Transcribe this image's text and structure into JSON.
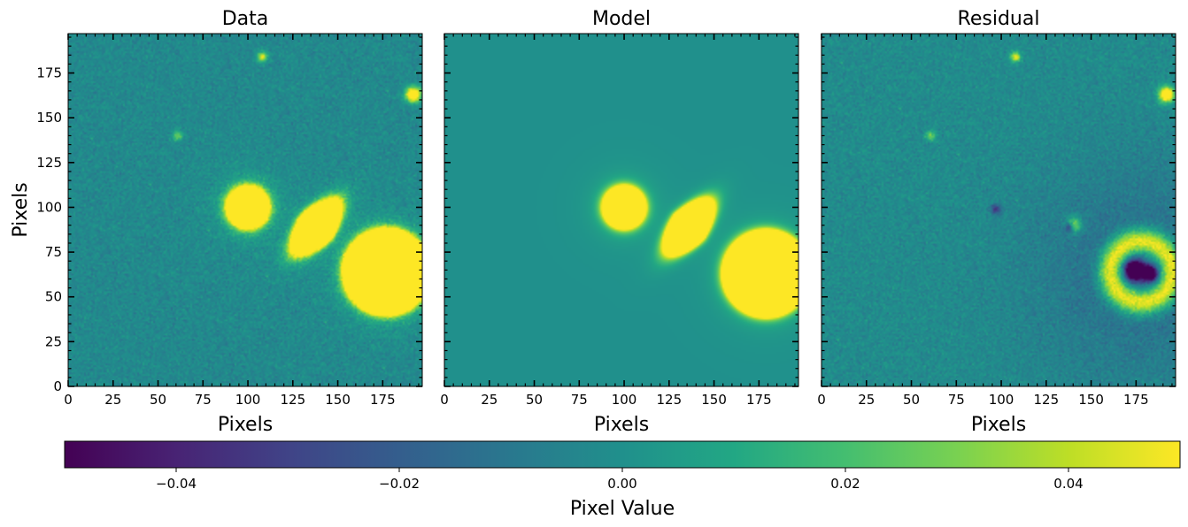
{
  "chart_data": {
    "type": "heatmap",
    "panels": [
      {
        "title": "Data",
        "xlabel": "Pixels",
        "ylabel": "Pixels",
        "xlim": [
          0,
          197
        ],
        "ylim": [
          0,
          197
        ],
        "xticks": [
          0,
          25,
          50,
          75,
          100,
          125,
          150,
          175
        ],
        "yticks": [
          0,
          25,
          50,
          75,
          100,
          125,
          150,
          175
        ],
        "background_value": -0.003,
        "noise": 0.0035,
        "sources": [
          {
            "shape": "circle",
            "x": 100,
            "y": 100,
            "r": 11,
            "peak": 0.25
          },
          {
            "shape": "lens",
            "x": 138,
            "y": 89,
            "a": 18,
            "b": 10,
            "angle": 50,
            "peak": 0.25
          },
          {
            "shape": "circle",
            "x": 177,
            "y": 64,
            "r": 23,
            "peak": 0.3
          },
          {
            "shape": "dot",
            "x": 108,
            "y": 184,
            "r": 2,
            "peak": 0.05
          },
          {
            "shape": "dot",
            "x": 61,
            "y": 140,
            "r": 2,
            "peak": 0.03
          },
          {
            "shape": "dot",
            "x": 192,
            "y": 163,
            "r": 3,
            "peak": 0.08
          }
        ]
      },
      {
        "title": "Model",
        "xlabel": "Pixels",
        "ylabel": "",
        "xlim": [
          0,
          197
        ],
        "ylim": [
          0,
          197
        ],
        "xticks": [
          0,
          25,
          50,
          75,
          100,
          125,
          150,
          175
        ],
        "yticks": [],
        "background_value": 0.0,
        "noise": 0.0,
        "sources": [
          {
            "shape": "circle",
            "x": 100,
            "y": 100,
            "r": 11,
            "peak": 0.25
          },
          {
            "shape": "lens",
            "x": 136,
            "y": 89,
            "a": 18,
            "b": 10,
            "angle": 50,
            "peak": 0.25
          },
          {
            "shape": "circle",
            "x": 179,
            "y": 63,
            "r": 23,
            "peak": 0.3
          }
        ]
      },
      {
        "title": "Residual",
        "xlabel": "Pixels",
        "ylabel": "",
        "xlim": [
          0,
          197
        ],
        "ylim": [
          0,
          197
        ],
        "xticks": [
          0,
          25,
          50,
          75,
          100,
          125,
          150,
          175
        ],
        "yticks": [],
        "background_value": -0.002,
        "noise": 0.0035,
        "sources": [
          {
            "shape": "ring",
            "x": 178,
            "y": 64,
            "r": 17,
            "width": 5,
            "peak": 0.06
          },
          {
            "shape": "dot",
            "x": 174,
            "y": 65,
            "r": 4,
            "peak": -0.08
          },
          {
            "shape": "dot",
            "x": 183,
            "y": 63,
            "r": 3,
            "peak": -0.07
          },
          {
            "shape": "dot",
            "x": 140,
            "y": 90,
            "r": 3,
            "peak": 0.05
          },
          {
            "shape": "dot",
            "x": 138,
            "y": 89,
            "r": 2,
            "peak": -0.05
          },
          {
            "shape": "dot",
            "x": 108,
            "y": 184,
            "r": 2,
            "peak": 0.05
          },
          {
            "shape": "dot",
            "x": 61,
            "y": 140,
            "r": 2,
            "peak": 0.03
          },
          {
            "shape": "dot",
            "x": 192,
            "y": 163,
            "r": 3,
            "peak": 0.08
          },
          {
            "shape": "dot",
            "x": 97,
            "y": 99,
            "r": 2,
            "peak": -0.03
          },
          {
            "shape": "dark_halo",
            "x": 178,
            "y": 64,
            "r": 42,
            "peak": -0.012
          }
        ]
      }
    ],
    "colorbar": {
      "label": "Pixel Value",
      "colormap": "viridis",
      "vmin": -0.05,
      "vmax": 0.05,
      "ticks": [
        -0.04,
        -0.02,
        0.0,
        0.02,
        0.04
      ],
      "tick_labels": [
        "−0.04",
        "−0.02",
        "0.00",
        "0.02",
        "0.04"
      ]
    }
  }
}
